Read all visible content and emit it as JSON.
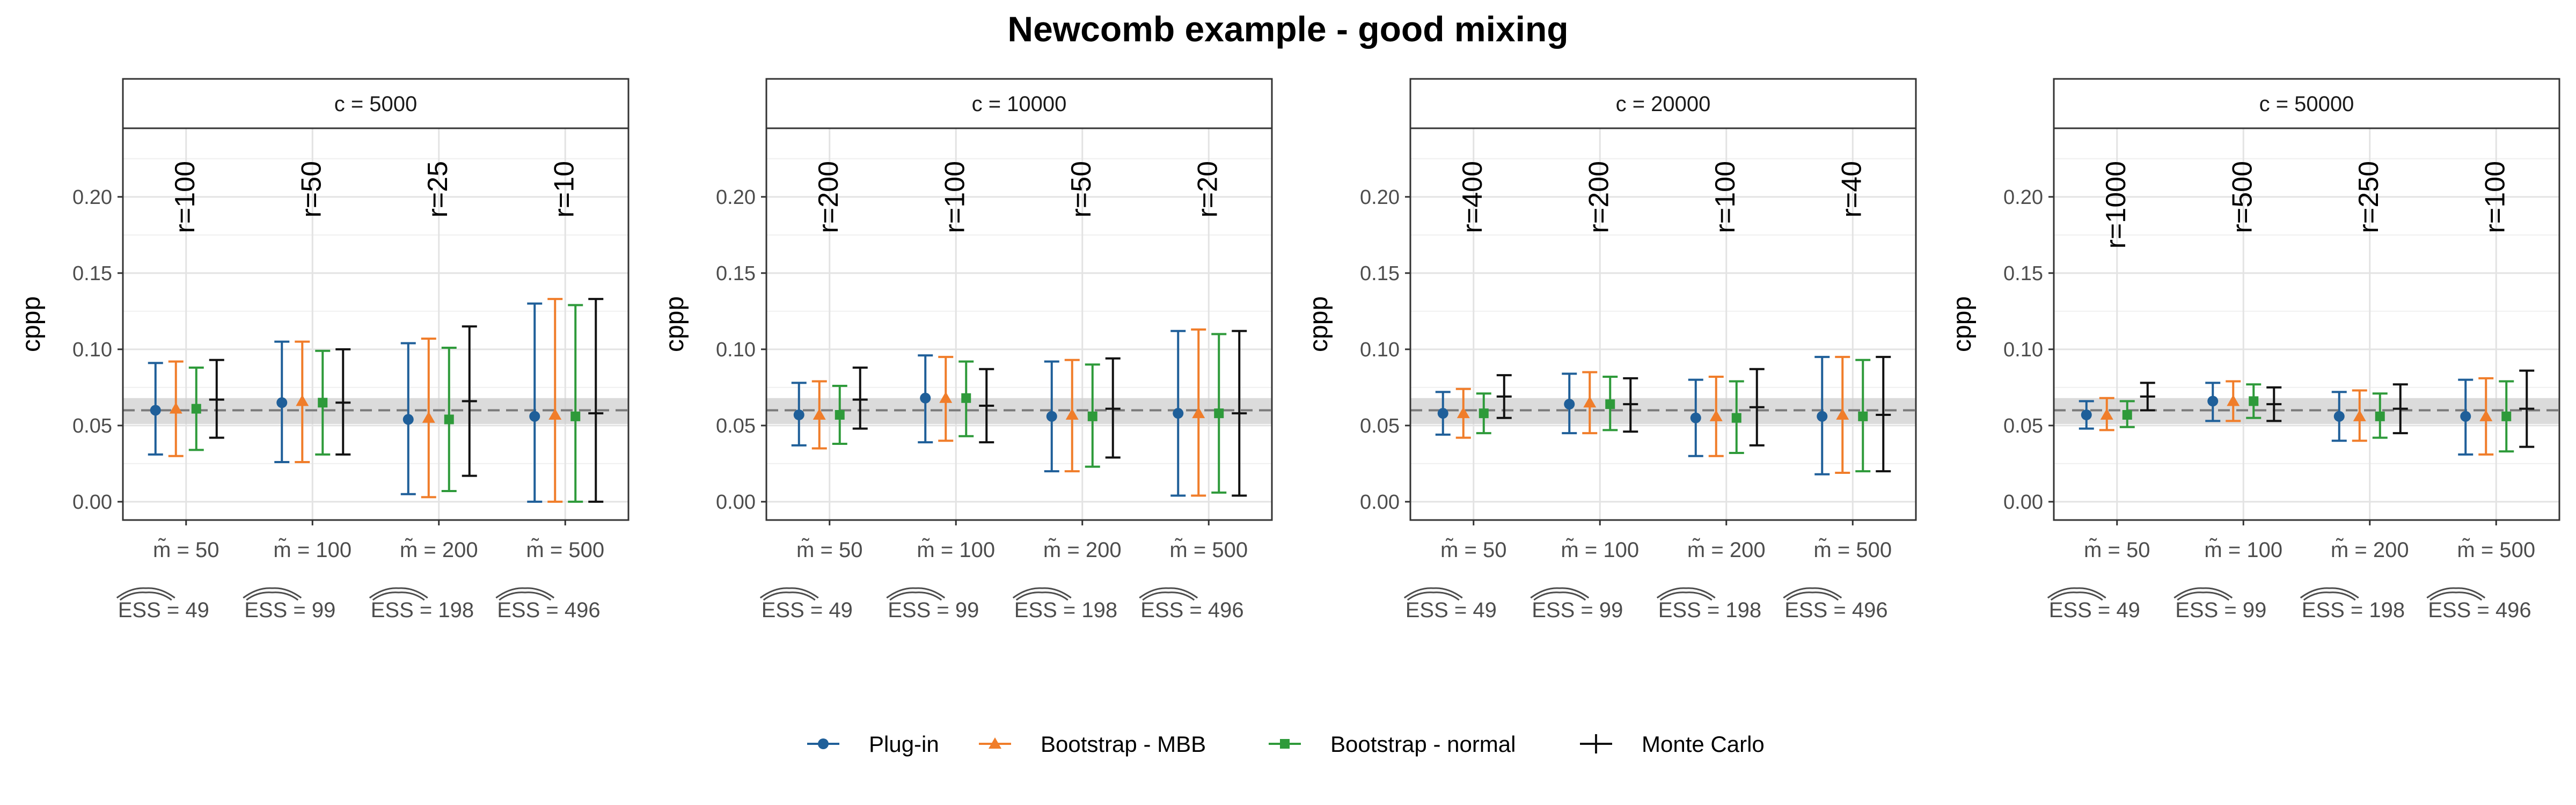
{
  "title": "Newcomb example - good mixing",
  "chart_data": {
    "type": "errorbar",
    "title": "Newcomb example - good mixing",
    "ylabel": "cppp",
    "xlabel": "",
    "ylim": [
      -0.012,
      0.245
    ],
    "yticks": [
      0.0,
      0.05,
      0.1,
      0.15,
      0.2
    ],
    "ytick_labels": [
      "0.00",
      "0.05",
      "0.10",
      "0.15",
      "0.20"
    ],
    "reference_line": 0.06,
    "reference_band": [
      0.051,
      0.068
    ],
    "grid": true,
    "legend_position": "bottom",
    "series": [
      {
        "name": "Plug-in",
        "color": "#1f5f99",
        "marker": "circle"
      },
      {
        "name": "Bootstrap - MBB",
        "color": "#f07d2a",
        "marker": "triangle"
      },
      {
        "name": "Bootstrap - normal",
        "color": "#2e9a3a",
        "marker": "square"
      },
      {
        "name": "Monte Carlo",
        "color": "#111111",
        "marker": "cross"
      }
    ],
    "categories": [
      "m̃ = 50",
      "m̃ = 100",
      "m̃ = 200",
      "m̃ = 500"
    ],
    "ess_labels": [
      "ESS = 49",
      "ESS = 99",
      "ESS = 198",
      "ESS = 496"
    ],
    "panels": [
      {
        "label": "c = 5000",
        "r_labels": [
          "r=100",
          "r=50",
          "r=25",
          "r=10"
        ],
        "groups": [
          [
            {
              "mid": 0.06,
              "low": 0.031,
              "high": 0.091
            },
            {
              "mid": 0.061,
              "low": 0.03,
              "high": 0.092
            },
            {
              "mid": 0.061,
              "low": 0.034,
              "high": 0.088
            },
            {
              "mid": 0.067,
              "low": 0.042,
              "high": 0.093
            }
          ],
          [
            {
              "mid": 0.065,
              "low": 0.026,
              "high": 0.105
            },
            {
              "mid": 0.066,
              "low": 0.026,
              "high": 0.105
            },
            {
              "mid": 0.065,
              "low": 0.031,
              "high": 0.099
            },
            {
              "mid": 0.065,
              "low": 0.031,
              "high": 0.1
            }
          ],
          [
            {
              "mid": 0.054,
              "low": 0.005,
              "high": 0.104
            },
            {
              "mid": 0.055,
              "low": 0.003,
              "high": 0.107
            },
            {
              "mid": 0.054,
              "low": 0.007,
              "high": 0.101
            },
            {
              "mid": 0.066,
              "low": 0.017,
              "high": 0.115
            }
          ],
          [
            {
              "mid": 0.056,
              "low": 0.0,
              "high": 0.13
            },
            {
              "mid": 0.057,
              "low": 0.0,
              "high": 0.133
            },
            {
              "mid": 0.056,
              "low": 0.0,
              "high": 0.129
            },
            {
              "mid": 0.058,
              "low": 0.0,
              "high": 0.133
            }
          ]
        ]
      },
      {
        "label": "c = 10000",
        "r_labels": [
          "r=200",
          "r=100",
          "r=50",
          "r=20"
        ],
        "groups": [
          [
            {
              "mid": 0.057,
              "low": 0.037,
              "high": 0.078
            },
            {
              "mid": 0.057,
              "low": 0.035,
              "high": 0.079
            },
            {
              "mid": 0.057,
              "low": 0.038,
              "high": 0.076
            },
            {
              "mid": 0.067,
              "low": 0.048,
              "high": 0.088
            }
          ],
          [
            {
              "mid": 0.068,
              "low": 0.039,
              "high": 0.096
            },
            {
              "mid": 0.068,
              "low": 0.04,
              "high": 0.095
            },
            {
              "mid": 0.068,
              "low": 0.043,
              "high": 0.092
            },
            {
              "mid": 0.063,
              "low": 0.039,
              "high": 0.087
            }
          ],
          [
            {
              "mid": 0.056,
              "low": 0.02,
              "high": 0.092
            },
            {
              "mid": 0.057,
              "low": 0.02,
              "high": 0.093
            },
            {
              "mid": 0.056,
              "low": 0.023,
              "high": 0.09
            },
            {
              "mid": 0.061,
              "low": 0.029,
              "high": 0.094
            }
          ],
          [
            {
              "mid": 0.058,
              "low": 0.004,
              "high": 0.112
            },
            {
              "mid": 0.058,
              "low": 0.004,
              "high": 0.113
            },
            {
              "mid": 0.058,
              "low": 0.006,
              "high": 0.11
            },
            {
              "mid": 0.058,
              "low": 0.004,
              "high": 0.112
            }
          ]
        ]
      },
      {
        "label": "c = 20000",
        "r_labels": [
          "r=400",
          "r=200",
          "r=100",
          "r=40"
        ],
        "groups": [
          [
            {
              "mid": 0.058,
              "low": 0.044,
              "high": 0.072
            },
            {
              "mid": 0.058,
              "low": 0.042,
              "high": 0.074
            },
            {
              "mid": 0.058,
              "low": 0.045,
              "high": 0.071
            },
            {
              "mid": 0.069,
              "low": 0.055,
              "high": 0.083
            }
          ],
          [
            {
              "mid": 0.064,
              "low": 0.045,
              "high": 0.084
            },
            {
              "mid": 0.065,
              "low": 0.045,
              "high": 0.085
            },
            {
              "mid": 0.064,
              "low": 0.047,
              "high": 0.082
            },
            {
              "mid": 0.064,
              "low": 0.046,
              "high": 0.081
            }
          ],
          [
            {
              "mid": 0.055,
              "low": 0.03,
              "high": 0.08
            },
            {
              "mid": 0.056,
              "low": 0.03,
              "high": 0.082
            },
            {
              "mid": 0.055,
              "low": 0.032,
              "high": 0.079
            },
            {
              "mid": 0.062,
              "low": 0.037,
              "high": 0.087
            }
          ],
          [
            {
              "mid": 0.056,
              "low": 0.018,
              "high": 0.095
            },
            {
              "mid": 0.057,
              "low": 0.019,
              "high": 0.095
            },
            {
              "mid": 0.056,
              "low": 0.02,
              "high": 0.093
            },
            {
              "mid": 0.057,
              "low": 0.02,
              "high": 0.095
            }
          ]
        ]
      },
      {
        "label": "c = 50000",
        "r_labels": [
          "r=1000",
          "r=500",
          "r=250",
          "r=100"
        ],
        "groups": [
          [
            {
              "mid": 0.057,
              "low": 0.048,
              "high": 0.066
            },
            {
              "mid": 0.057,
              "low": 0.047,
              "high": 0.068
            },
            {
              "mid": 0.057,
              "low": 0.049,
              "high": 0.066
            },
            {
              "mid": 0.069,
              "low": 0.06,
              "high": 0.078
            }
          ],
          [
            {
              "mid": 0.066,
              "low": 0.053,
              "high": 0.078
            },
            {
              "mid": 0.066,
              "low": 0.053,
              "high": 0.079
            },
            {
              "mid": 0.066,
              "low": 0.055,
              "high": 0.077
            },
            {
              "mid": 0.064,
              "low": 0.053,
              "high": 0.075
            }
          ],
          [
            {
              "mid": 0.056,
              "low": 0.04,
              "high": 0.072
            },
            {
              "mid": 0.056,
              "low": 0.04,
              "high": 0.073
            },
            {
              "mid": 0.056,
              "low": 0.042,
              "high": 0.071
            },
            {
              "mid": 0.061,
              "low": 0.045,
              "high": 0.077
            }
          ],
          [
            {
              "mid": 0.056,
              "low": 0.031,
              "high": 0.08
            },
            {
              "mid": 0.056,
              "low": 0.031,
              "high": 0.081
            },
            {
              "mid": 0.056,
              "low": 0.033,
              "high": 0.079
            },
            {
              "mid": 0.061,
              "low": 0.036,
              "high": 0.086
            }
          ]
        ]
      }
    ]
  }
}
